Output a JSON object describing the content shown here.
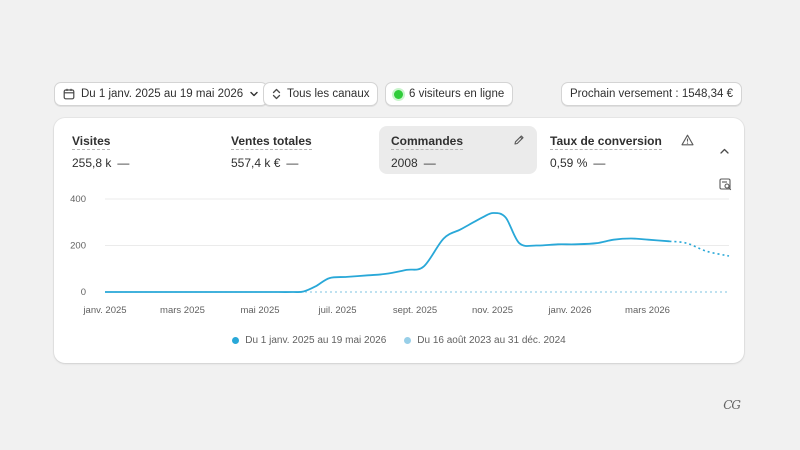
{
  "toolbar": {
    "date_range_label": "Du 1 janv. 2025 au 19 mai 2026",
    "channels_label": "Tous les canaux",
    "visitors_label": "6 visiteurs en ligne",
    "payout_label": "Prochain versement : 1548,34 €"
  },
  "metrics": [
    {
      "label": "Visites",
      "value": "255,8 k",
      "dash": "—"
    },
    {
      "label": "Ventes totales",
      "value": "557,4 k €",
      "dash": "—"
    },
    {
      "label": "Commandes",
      "value": "2008",
      "dash": "—"
    },
    {
      "label": "Taux de conversion",
      "value": "0,59 %",
      "dash": "—"
    }
  ],
  "icons": {
    "calendar": "calendar-icon",
    "channels": "up-down-chevron-icon",
    "edit": "pencil-icon",
    "warning": "warning-triangle-icon",
    "collapse": "chevron-up-icon",
    "chart_toggle": "chart-search-icon"
  },
  "colors": {
    "current_series": "#29a8d8",
    "previous_series": "#98cfe8",
    "online_dot": "#2fcc3a"
  },
  "chart_data": {
    "type": "line",
    "title": "",
    "xlabel": "",
    "ylabel": "",
    "ylim": [
      0,
      400
    ],
    "y_ticks": [
      "0",
      "200",
      "400"
    ],
    "x_tick_labels": [
      "janv. 2025",
      "mars 2025",
      "mai 2025",
      "juil. 2025",
      "sept. 2025",
      "nov. 2025",
      "janv. 2026",
      "mars 2026"
    ],
    "grid": true,
    "legend_position": "bottom",
    "series": [
      {
        "name": "Du 1 janv. 2025 au 19 mai 2026",
        "x": [
          "2025-01-01",
          "2025-01-15",
          "2025-02-01",
          "2025-02-15",
          "2025-03-01",
          "2025-03-15",
          "2025-04-01",
          "2025-04-15",
          "2025-05-01",
          "2025-05-15",
          "2025-06-01",
          "2025-06-10",
          "2025-06-20",
          "2025-07-01",
          "2025-07-15",
          "2025-08-01",
          "2025-08-15",
          "2025-09-01",
          "2025-09-15",
          "2025-10-01",
          "2025-10-15",
          "2025-11-01",
          "2025-11-10",
          "2025-11-20",
          "2025-12-01",
          "2025-12-15",
          "2026-01-01",
          "2026-01-15",
          "2026-02-01",
          "2026-02-15",
          "2026-03-01",
          "2026-03-15",
          "2026-04-01",
          "2026-04-15",
          "2026-05-01",
          "2026-05-19"
        ],
        "values": [
          0,
          0,
          0,
          0,
          0,
          0,
          0,
          0,
          0,
          0,
          0,
          2,
          25,
          60,
          65,
          72,
          78,
          95,
          110,
          230,
          270,
          320,
          340,
          320,
          210,
          200,
          205,
          205,
          210,
          225,
          230,
          225,
          218,
          210,
          175,
          155
        ],
        "projected_from": "2026-04-01"
      },
      {
        "name": "Du 16 août 2023 au 31 déc. 2024",
        "x": [
          "2025-01-01",
          "2026-05-19"
        ],
        "values": [
          0,
          0
        ]
      }
    ]
  }
}
